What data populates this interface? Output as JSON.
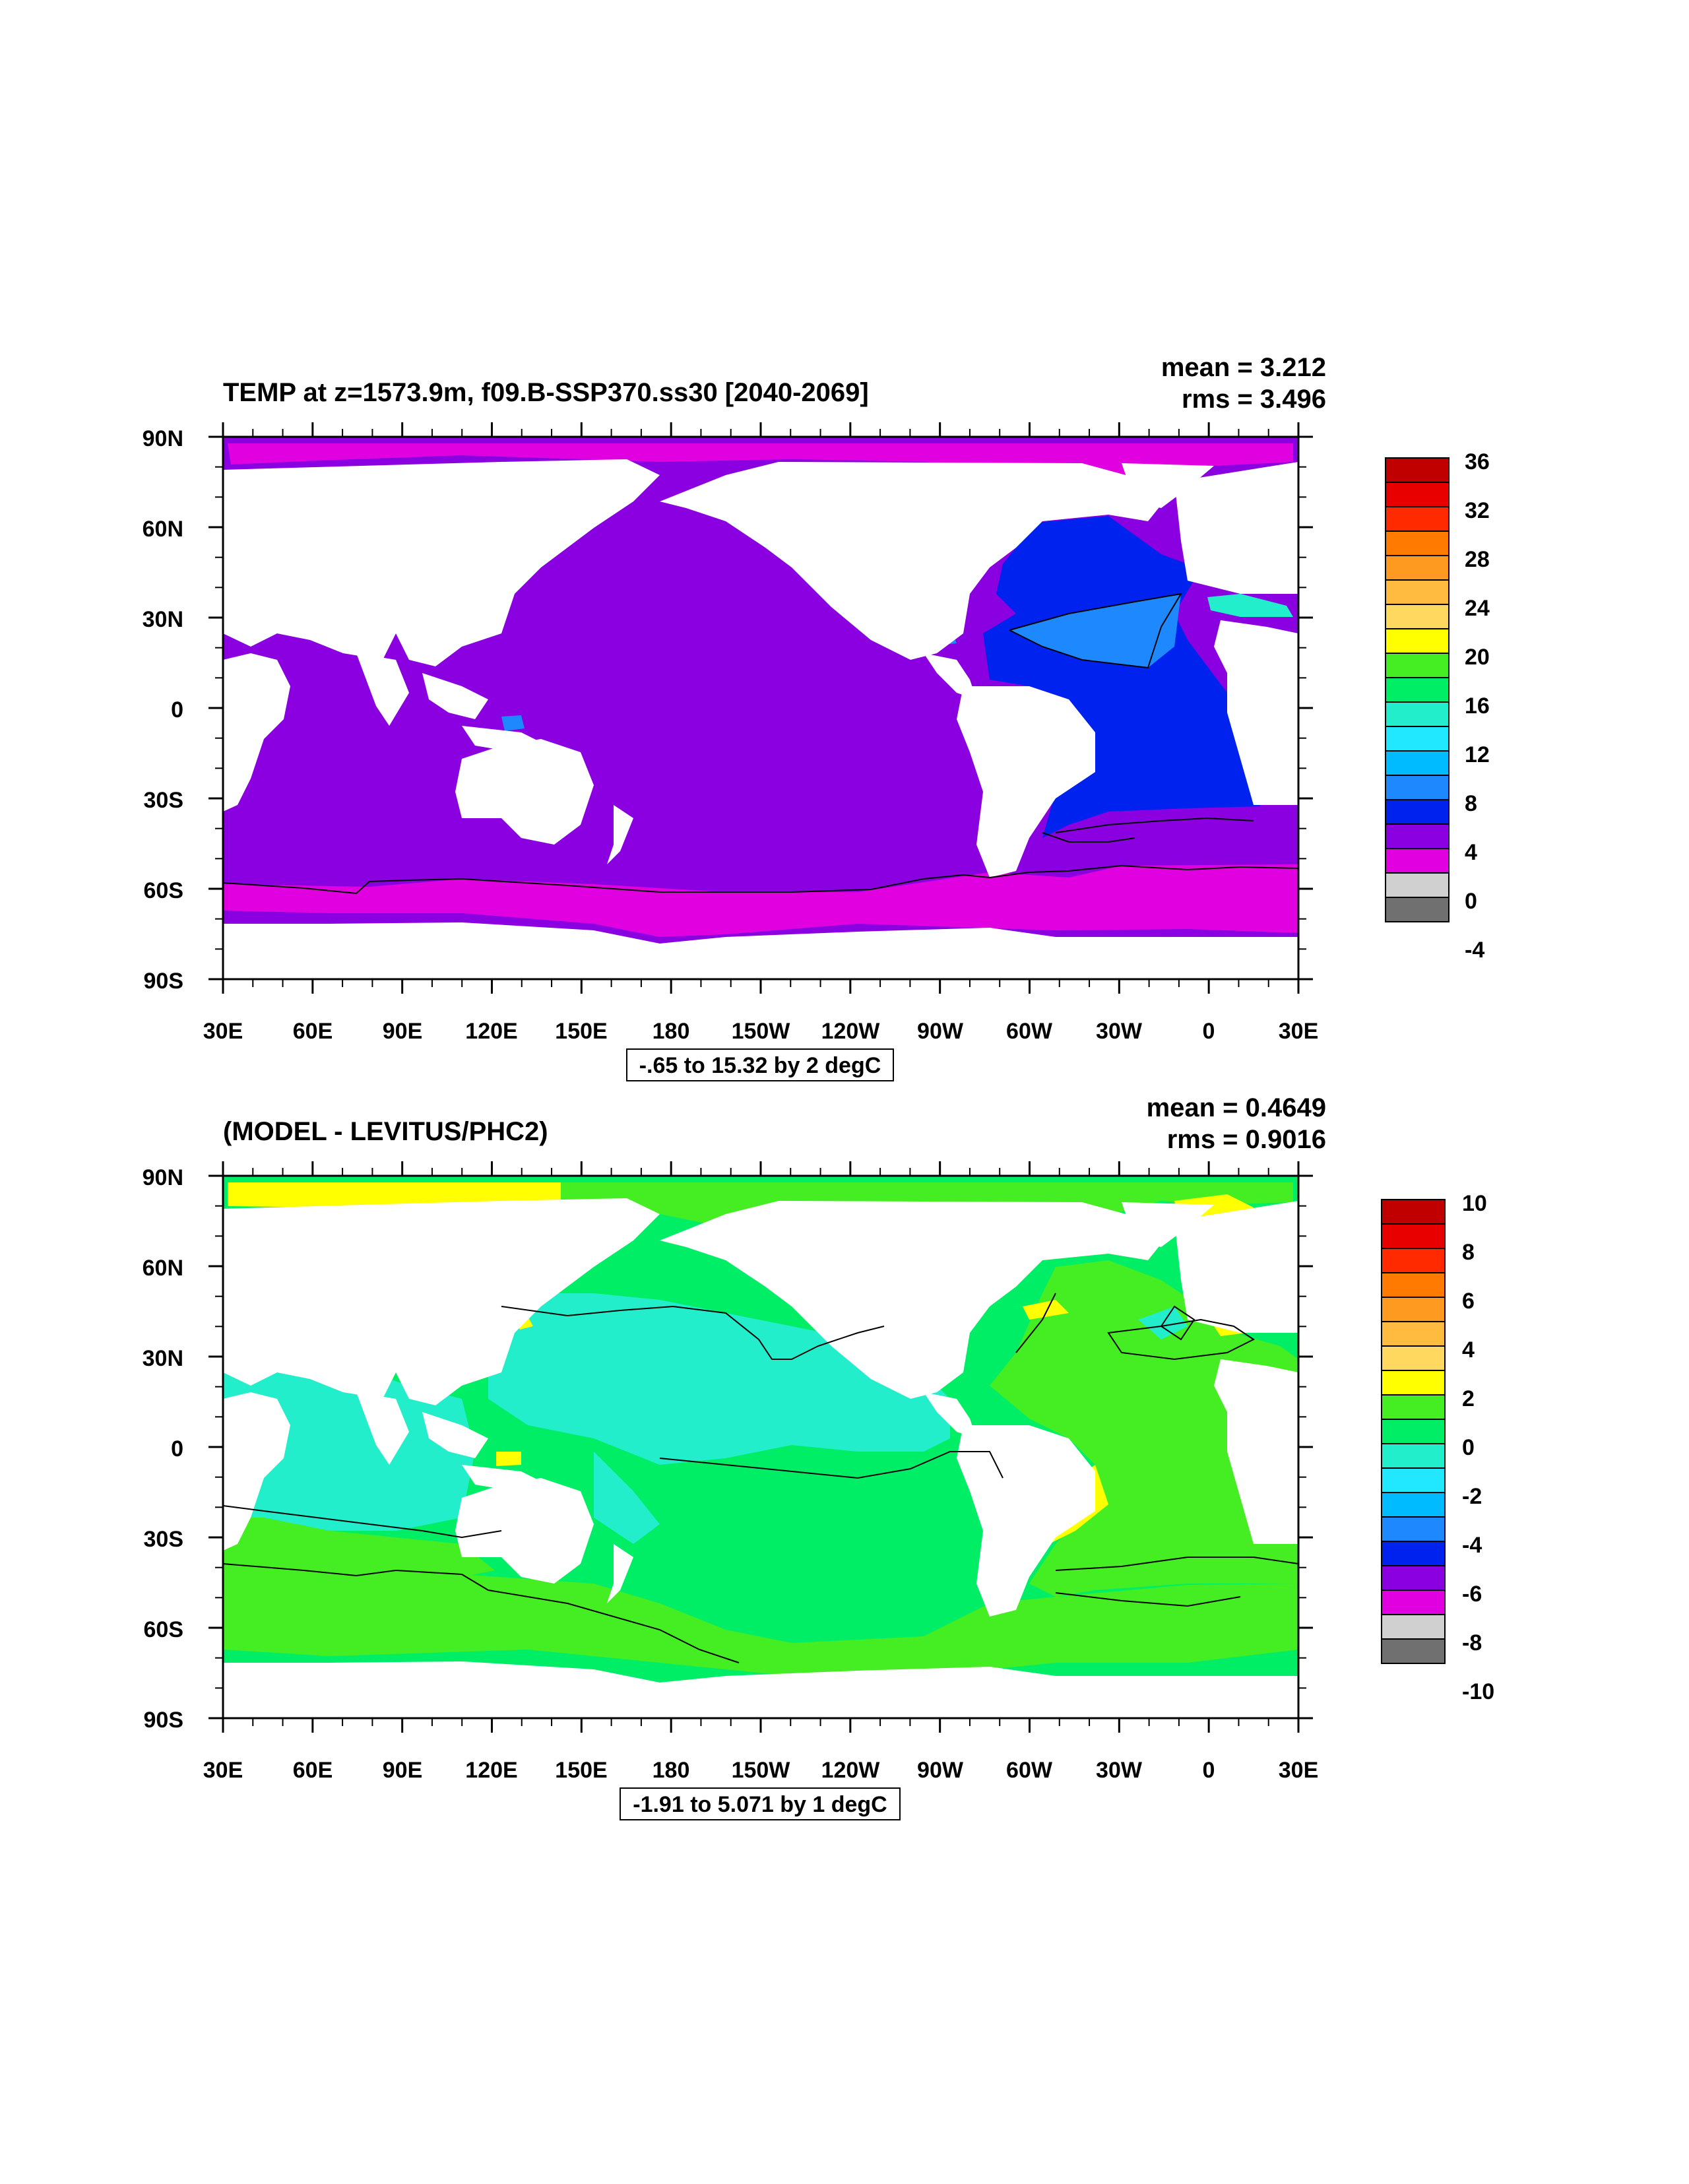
{
  "panels": [
    {
      "title": "TEMP at z=1573.9m, f09.B-SSP370.ss30 [2040-2069]",
      "stats": {
        "mean": "mean = 3.212",
        "rms": "rms = 3.496"
      },
      "y_ticks": [
        "90N",
        "60N",
        "30N",
        "0",
        "30S",
        "60S",
        "90S"
      ],
      "x_ticks": [
        "30E",
        "60E",
        "90E",
        "120E",
        "150E",
        "180",
        "150W",
        "120W",
        "90W",
        "60W",
        "30W",
        "0",
        "30E"
      ],
      "contour_info": "-.65 to 15.32 by 2 degC",
      "colorbar": {
        "labels": [
          "36",
          "32",
          "28",
          "24",
          "20",
          "16",
          "12",
          "8",
          "4",
          "0",
          "-4"
        ],
        "colors": [
          "#c00000",
          "#e80000",
          "#ff2a00",
          "#ff7a00",
          "#ff9a20",
          "#ffbb40",
          "#ffd860",
          "#ffff00",
          "#44ee22",
          "#00ee66",
          "#22eecc",
          "#22e8ff",
          "#00bbff",
          "#1e88ff",
          "#0022ee",
          "#8a00e0",
          "#e000e0",
          "#d0d0d0",
          "#707070"
        ]
      }
    },
    {
      "title": "(MODEL - LEVITUS/PHC2)",
      "stats": {
        "mean": "mean = 0.4649",
        "rms": "rms = 0.9016"
      },
      "y_ticks": [
        "90N",
        "60N",
        "30N",
        "0",
        "30S",
        "60S",
        "90S"
      ],
      "x_ticks": [
        "30E",
        "60E",
        "90E",
        "120E",
        "150E",
        "180",
        "150W",
        "120W",
        "90W",
        "60W",
        "30W",
        "0",
        "30E"
      ],
      "contour_info": "-1.91 to 5.071 by 1 degC",
      "colorbar": {
        "labels": [
          "10",
          "8",
          "6",
          "4",
          "2",
          "0",
          "-2",
          "-4",
          "-6",
          "-8",
          "-10"
        ],
        "colors": [
          "#c00000",
          "#e80000",
          "#ff2a00",
          "#ff7a00",
          "#ff9a20",
          "#ffbb40",
          "#ffd860",
          "#ffff00",
          "#44ee22",
          "#00ee66",
          "#22eecc",
          "#22e8ff",
          "#00bbff",
          "#1e88ff",
          "#0022ee",
          "#8a00e0",
          "#e000e0",
          "#d0d0d0",
          "#707070"
        ]
      }
    }
  ]
}
